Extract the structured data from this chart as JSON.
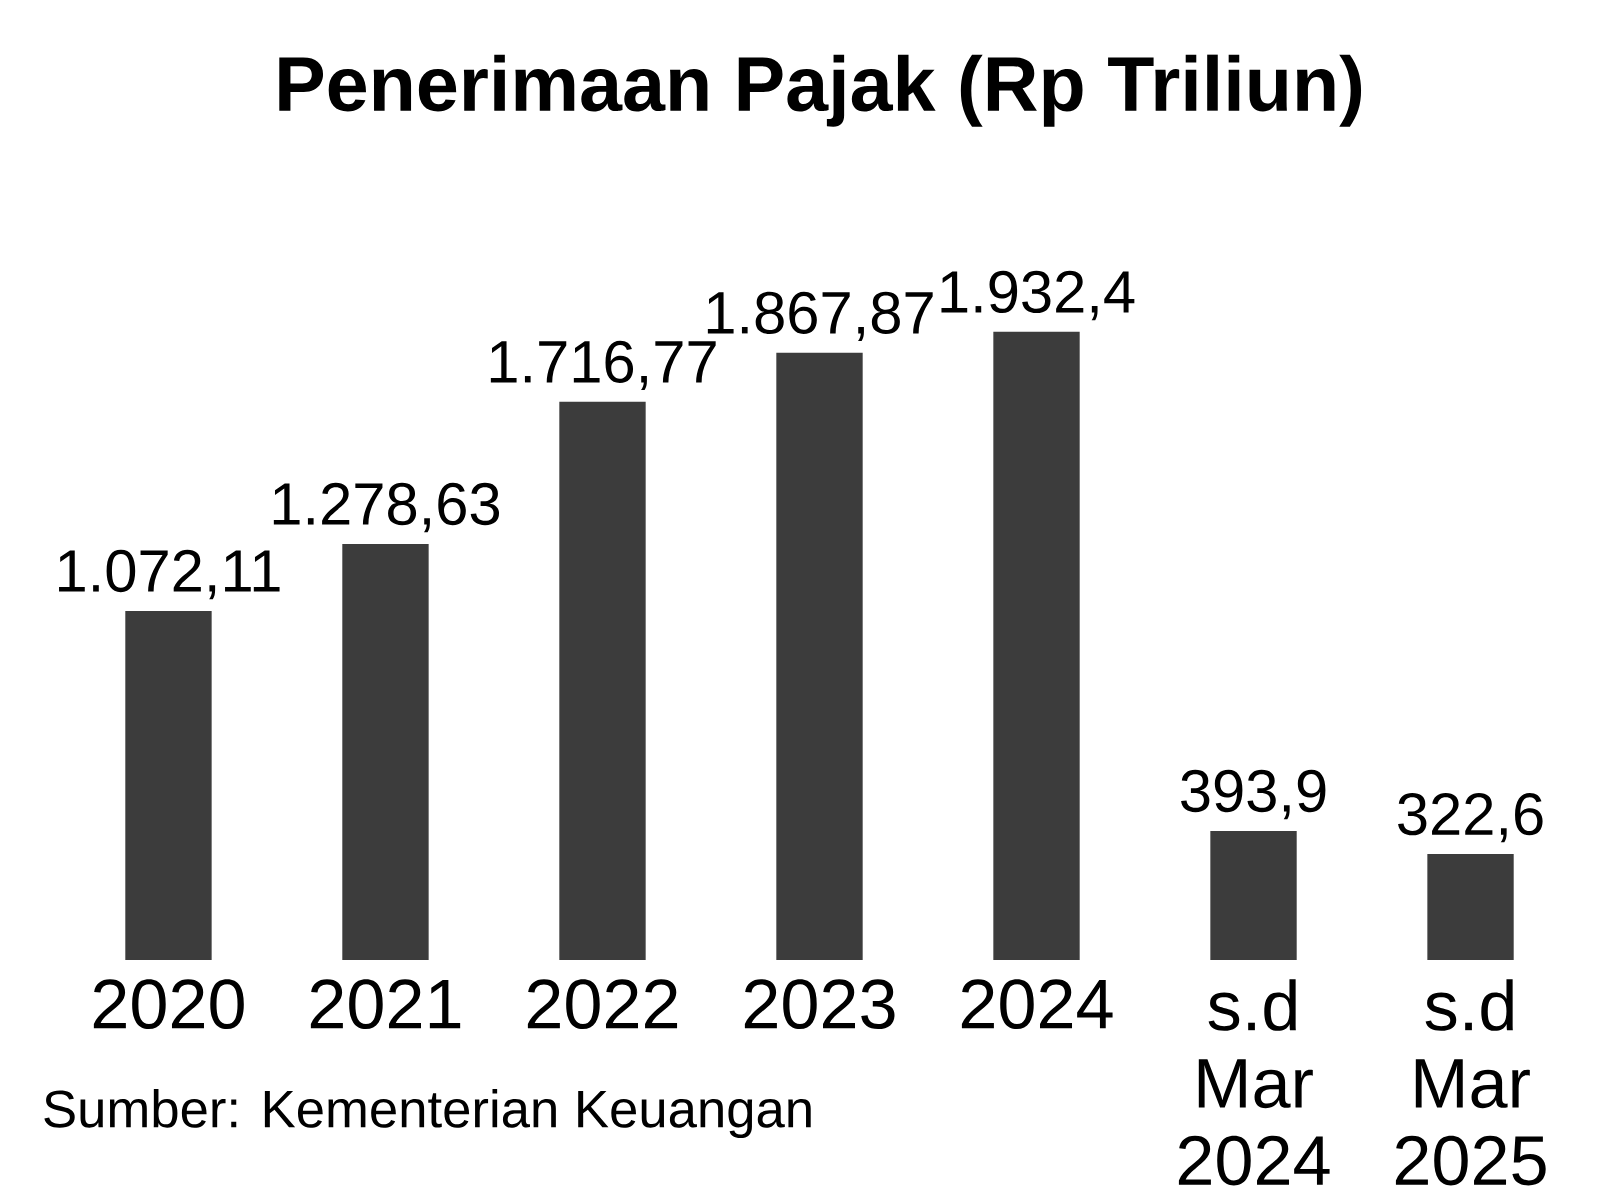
{
  "chart_data": {
    "type": "bar",
    "title": "**Penerimaan Pajak (Rp Triliun)**",
    "categories": [
      "2020",
      "2021",
      "2022",
      "2023",
      "2024",
      "s.d Mar 2024",
      "s.d Mar 2025"
    ],
    "values": [
      1072.11,
      1278.63,
      1716.77,
      1867.87,
      1932.4,
      393.9,
      322.6
    ],
    "value_labels": [
      "1.072,11",
      "1.278,63",
      "1.716,77",
      "1.867,87",
      "1.932,4",
      "393,9",
      "322,6"
    ],
    "color": "#3c3c3c",
    "annotations": [
      "Sumber: Kementerian Keuangan"
    ]
  }
}
